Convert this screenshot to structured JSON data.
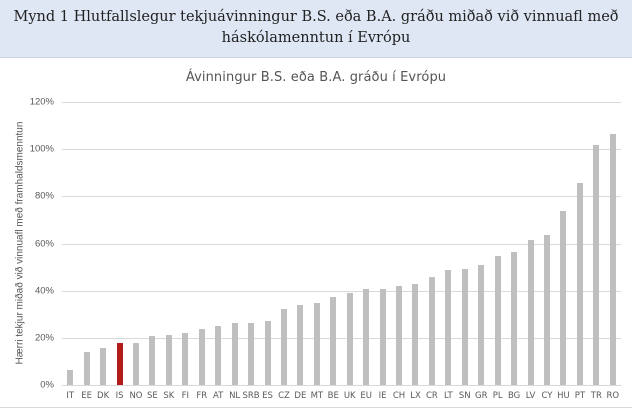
{
  "header": {
    "title_line1": "Mynd 1 Hlutfallslegur tekjuávinningur B.S. eða B.A. gráðu miðað við vinnuafl með",
    "title_line2": "háskólamenntun í Evrópu"
  },
  "colors": {
    "header_bg": "#dfe7f4",
    "bar": "#bfbfbf",
    "highlight_bar": "#b31b1b",
    "grid": "#d9d9d9"
  },
  "chart_data": {
    "type": "bar",
    "title": "Ávinningur B.S. eða B.A. gráðu í Evrópu",
    "xlabel": "",
    "ylabel": "Hærri tekjur miðað við vinnuafl með framhaldsmenntun",
    "ylim": [
      0,
      120
    ],
    "yticks": [
      "0%",
      "20%",
      "40%",
      "60%",
      "80%",
      "100%",
      "120%"
    ],
    "grid": true,
    "legend": null,
    "highlight": "IS",
    "categories": [
      "IT",
      "EE",
      "DK",
      "IS",
      "NO",
      "SE",
      "SK",
      "FI",
      "FR",
      "AT",
      "NL",
      "SRB",
      "ES",
      "CZ",
      "DE",
      "MT",
      "BE",
      "UK",
      "EU",
      "IE",
      "CH",
      "LX",
      "CR",
      "LT",
      "SN",
      "GR",
      "PL",
      "BG",
      "LV",
      "CY",
      "HU",
      "PT",
      "TR",
      "RO"
    ],
    "values": [
      6.4,
      14.2,
      15.9,
      17.9,
      18.0,
      20.6,
      21.2,
      22.1,
      23.9,
      25.0,
      26.4,
      26.5,
      27.2,
      32.3,
      34.0,
      34.9,
      37.4,
      39.1,
      40.9,
      40.9,
      42.1,
      42.8,
      45.9,
      48.9,
      49.3,
      51.0,
      54.9,
      56.6,
      61.3,
      63.4,
      73.6,
      85.5,
      101.7,
      106.4
    ]
  }
}
